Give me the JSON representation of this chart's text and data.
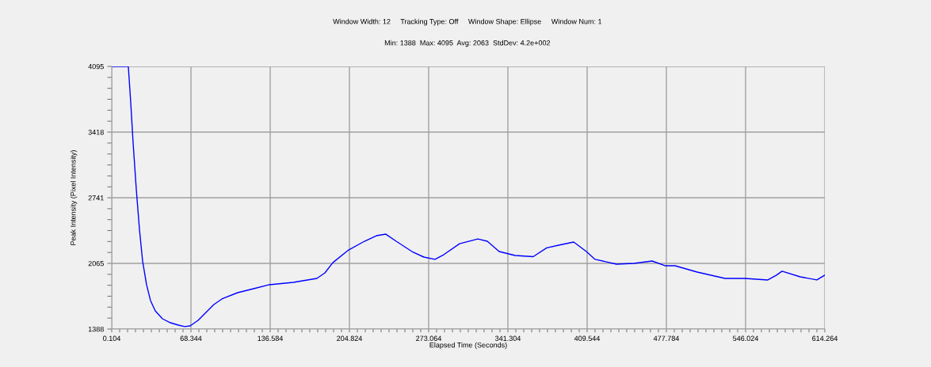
{
  "chart_data": {
    "type": "line",
    "title": "Window Width: 12     Tracking Type: Off     Window Shape: Ellipse     Window Num: 1",
    "subtitle": "Min: 1388  Max: 4095  Avg: 2063  StdDev: 4.2e+002",
    "xlabel": "Elapsed Time (Seconds)",
    "ylabel": "Peak Intensity (Pixel Intensity)",
    "xlim": [
      0.104,
      614.264
    ],
    "xticks": [
      0.104,
      68.344,
      136.584,
      204.824,
      273.064,
      341.304,
      409.544,
      477.784,
      546.024,
      614.264
    ],
    "ylim": [
      1388,
      4095
    ],
    "yticks": [
      1388,
      2065,
      2741,
      3418,
      4095
    ],
    "grid": true,
    "marker": "none",
    "line_style": "solid",
    "series": [
      {
        "color": "#0000ff",
        "x": [
          0.104,
          14.4,
          16.5,
          18.5,
          21.3,
          24.0,
          26.7,
          30.1,
          33.5,
          37.6,
          43.8,
          50.6,
          57.4,
          62.9,
          67.7,
          74.5,
          81.3,
          88.1,
          95.0,
          108.6,
          122.3,
          135.9,
          156.4,
          176.8,
          183.7,
          190.5,
          204.1,
          217.8,
          228.0,
          236.2,
          245.1,
          258.7,
          268.9,
          278.5,
          286.0,
          299.7,
          315.4,
          323.6,
          333.8,
          347.5,
          363.1,
          374.7,
          385.0,
          398.0,
          408.9,
          416.4,
          434.8,
          449.8,
          465.5,
          477.1,
          485.3,
          504.4,
          528.3,
          545.4,
          565.2,
          572.6,
          577.4,
          593.1,
          607.4,
          614.264
        ],
        "values": [
          4095,
          4095,
          3720,
          3312,
          2823,
          2415,
          2089,
          1845,
          1682,
          1575,
          1494,
          1453,
          1429,
          1413,
          1421,
          1478,
          1559,
          1641,
          1698,
          1763,
          1804,
          1845,
          1869,
          1910,
          1967,
          2072,
          2203,
          2293,
          2350,
          2366,
          2293,
          2187,
          2130,
          2106,
          2154,
          2268,
          2317,
          2293,
          2187,
          2146,
          2134,
          2225,
          2252,
          2285,
          2187,
          2106,
          2057,
          2065,
          2089,
          2040,
          2040,
          1975,
          1910,
          1910,
          1894,
          1943,
          1984,
          1926,
          1894,
          1943
        ]
      }
    ]
  }
}
